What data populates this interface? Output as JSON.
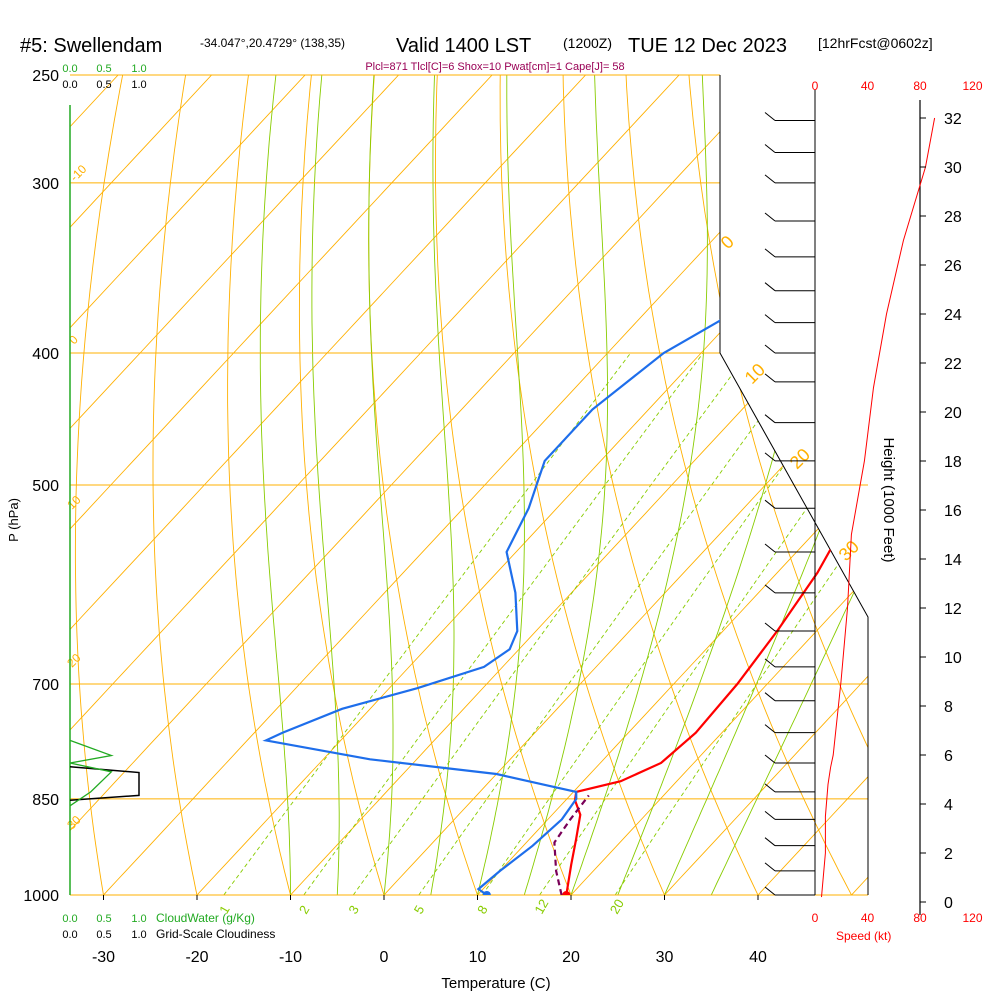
{
  "header": {
    "station": "#5: Swellendam",
    "coords": "-34.047°,20.4729° (138,35)",
    "valid": "Valid 1400 LST",
    "zulu": "(1200Z)",
    "date": "TUE 12 Dec 2023",
    "forecast": "[12hrFcst@0602z]",
    "indices": "Plcl=871 Tlcl[C]=6 Shox=10 Pwat[cm]=1 Cape[J]= 58"
  },
  "colors": {
    "temperature": "#ff0000",
    "dewpoint": "#1e6eeb",
    "parcel": "#7a0058",
    "isobar_isotherm": "#ffb000",
    "mixing_ratio": "#88cc00",
    "cloud_water": "#22aa22",
    "cloudiness": "#000000",
    "wind_speed_scale": "#ff0000",
    "indices_text": "#990055"
  },
  "scales": {
    "cloud_top_labels": [
      "0.0",
      "0.5",
      "1.0"
    ],
    "cloud_bottom_labels": [
      "0.0",
      "0.5",
      "1.0"
    ],
    "cloud_water_label": "CloudWater (g/Kg)",
    "cloudiness_label": "Grid-Scale Cloudiness",
    "speed_labels": [
      "0",
      "40",
      "80",
      "120"
    ],
    "speed_unit": "Speed (kt)"
  },
  "chart_data": {
    "type": "line",
    "title": "#5: Swellendam Valid 1400 LST (1200Z) TUE 12 Dec 2023",
    "xlabel": "Temperature (C)",
    "ylabel": "P (hPa)",
    "y2label": "Height (1000 Feet)",
    "x_ticks": [
      -30,
      -20,
      -10,
      0,
      10,
      20,
      30,
      40
    ],
    "x_tick_labels": [
      "-30",
      "-20",
      "-10",
      "0",
      "10",
      "20",
      "30",
      "40"
    ],
    "y_ticks": [
      250,
      300,
      400,
      500,
      700,
      850,
      1000
    ],
    "y_tick_labels": [
      "250",
      "300",
      "400",
      "500",
      "700",
      "850",
      "1000"
    ],
    "height_ticks": [
      0,
      2,
      4,
      6,
      8,
      10,
      12,
      14,
      16,
      18,
      20,
      22,
      24,
      26,
      28,
      30,
      32
    ],
    "height_tick_labels": [
      "0",
      "2",
      "4",
      "6",
      "8",
      "10",
      "12",
      "14",
      "16",
      "18",
      "20",
      "22",
      "24",
      "26",
      "28",
      "30",
      "32"
    ],
    "mixing_ratio_labels": [
      "1",
      "2",
      "3",
      "5",
      "8",
      "12",
      "20"
    ],
    "dry_adiabat_labels": [
      "-10",
      "0",
      "10",
      "20",
      "30",
      "0",
      "10",
      "20",
      "30"
    ],
    "series": [
      {
        "name": "Temperature",
        "points": [
          [
            19.5,
            1000
          ],
          [
            17,
            950
          ],
          [
            15,
            910
          ],
          [
            13,
            873
          ],
          [
            11,
            852
          ],
          [
            10.3,
            840
          ],
          [
            14,
            825
          ],
          [
            16.5,
            800
          ],
          [
            17.2,
            760
          ],
          [
            16.8,
            700
          ],
          [
            15.8,
            640
          ],
          [
            14.3,
            580
          ],
          [
            12.2,
            530
          ],
          [
            9.7,
            490
          ],
          [
            7.3,
            450
          ],
          [
            5.7,
            410
          ],
          [
            4.4,
            370
          ],
          [
            2.9,
            330
          ],
          [
            1.4,
            305
          ],
          [
            -0.5,
            280
          ],
          [
            -2,
            265
          ]
        ]
      },
      {
        "name": "Dewpoint",
        "points": [
          [
            11,
            1000
          ],
          [
            9.5,
            990
          ],
          [
            10,
            960
          ],
          [
            11,
            920
          ],
          [
            11.5,
            880
          ],
          [
            11,
            850
          ],
          [
            10.3,
            840
          ],
          [
            7,
            832
          ],
          [
            0,
            815
          ],
          [
            -15,
            795
          ],
          [
            -28,
            770
          ],
          [
            -27,
            760
          ],
          [
            -23,
            730
          ],
          [
            -17,
            705
          ],
          [
            -12,
            680
          ],
          [
            -11,
            660
          ],
          [
            -12,
            640
          ],
          [
            -16,
            600
          ],
          [
            -21,
            560
          ],
          [
            -23,
            520
          ],
          [
            -26,
            480
          ],
          [
            -26,
            440
          ],
          [
            -24,
            400
          ],
          [
            -20,
            370
          ],
          [
            -15,
            345
          ],
          [
            -12,
            325
          ],
          [
            -11,
            305
          ],
          [
            -11,
            285
          ],
          [
            -12,
            265
          ]
        ]
      },
      {
        "name": "Parcel",
        "points": [
          [
            19,
            1000
          ],
          [
            16,
            960
          ],
          [
            13,
            915
          ],
          [
            12.4,
            880
          ],
          [
            12,
            845
          ]
        ]
      }
    ],
    "dewpoint_surface": [
      11,
      1000
    ],
    "temperature_surface": [
      19.5,
      1000
    ],
    "height_profile_kft": [
      0.2,
      2,
      3.5,
      4.8,
      5.5,
      6,
      9,
      12,
      15,
      18,
      21,
      24,
      27,
      30,
      32
    ],
    "wind_speed_kt": [
      5,
      8,
      8,
      10,
      12,
      14,
      20,
      25,
      28,
      38,
      45,
      55,
      68,
      85,
      92
    ],
    "cloud_water": [
      [
        0.0,
        770
      ],
      [
        0.6,
        790
      ],
      [
        0.0,
        800
      ],
      [
        0.6,
        812
      ],
      [
        0.3,
        840
      ],
      [
        0.0,
        860
      ]
    ],
    "cloudiness": [
      [
        0.0,
        805
      ],
      [
        1.0,
        813
      ],
      [
        1.0,
        845
      ],
      [
        0.0,
        852
      ]
    ]
  }
}
